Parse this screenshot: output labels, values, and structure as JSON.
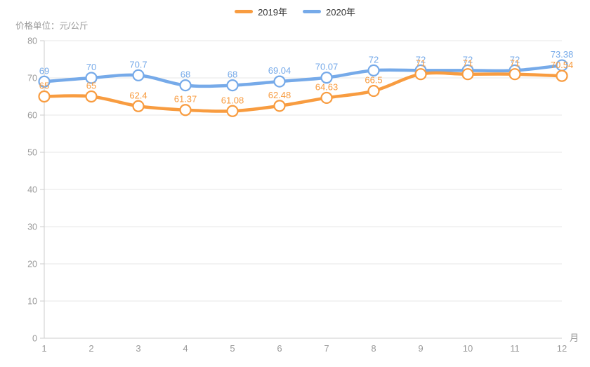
{
  "chart_data": {
    "type": "line",
    "title": "",
    "categories": [
      "1",
      "2",
      "3",
      "4",
      "5",
      "6",
      "7",
      "8",
      "9",
      "10",
      "11",
      "12"
    ],
    "xlabel": "月",
    "ylabel": "价格单位：元/公斤",
    "ylim": [
      0,
      80
    ],
    "ytick_step": 10,
    "yticks": [
      0,
      10,
      20,
      30,
      40,
      50,
      60,
      70,
      80
    ],
    "grid": true,
    "smooth": true,
    "legend_position": "top-center",
    "series": [
      {
        "name": "2019年",
        "color": "#f89c40",
        "values": [
          65,
          65,
          62.4,
          61.37,
          61.08,
          62.48,
          64.63,
          66.5,
          71,
          71,
          71,
          70.54
        ]
      },
      {
        "name": "2020年",
        "color": "#76aae9",
        "values": [
          69,
          70,
          70.7,
          68,
          68,
          69.04,
          70.07,
          72,
          72,
          72,
          72,
          73.38
        ]
      }
    ],
    "colors": {
      "grid": "#e7e7e7",
      "axis": "#cccccc",
      "tick_text": "#999999",
      "marker_fill": "#ffffff",
      "legend_text": "#333333"
    }
  }
}
